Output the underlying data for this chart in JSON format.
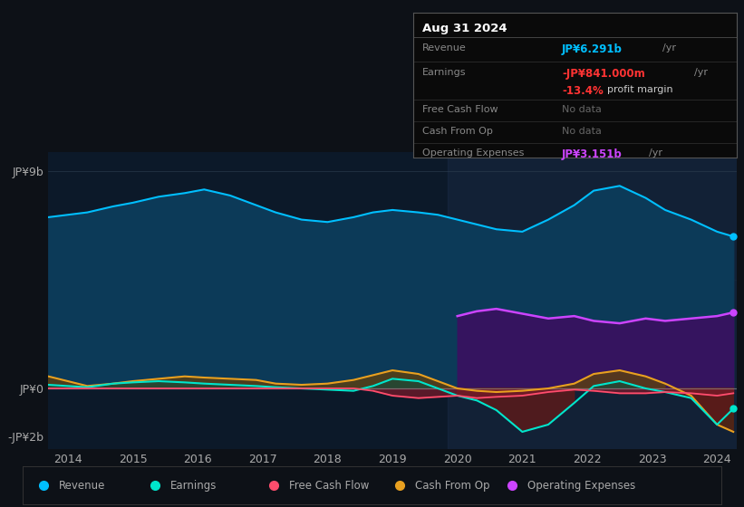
{
  "bg_color": "#0d1117",
  "plot_bg_color": "#0c1929",
  "years": [
    2013.7,
    2014.0,
    2014.3,
    2014.7,
    2015.0,
    2015.4,
    2015.8,
    2016.1,
    2016.5,
    2016.9,
    2017.2,
    2017.6,
    2018.0,
    2018.4,
    2018.7,
    2019.0,
    2019.4,
    2019.7,
    2020.0,
    2020.3,
    2020.6,
    2021.0,
    2021.4,
    2021.8,
    2022.1,
    2022.5,
    2022.9,
    2023.2,
    2023.6,
    2024.0,
    2024.25
  ],
  "revenue": [
    7.1,
    7.2,
    7.3,
    7.55,
    7.7,
    7.95,
    8.1,
    8.25,
    8.0,
    7.6,
    7.3,
    7.0,
    6.9,
    7.1,
    7.3,
    7.4,
    7.3,
    7.2,
    7.0,
    6.8,
    6.6,
    6.5,
    7.0,
    7.6,
    8.2,
    8.4,
    7.9,
    7.4,
    7.0,
    6.5,
    6.3
  ],
  "earnings": [
    0.15,
    0.1,
    0.05,
    0.2,
    0.25,
    0.3,
    0.25,
    0.2,
    0.15,
    0.1,
    0.05,
    0.0,
    -0.05,
    -0.1,
    0.1,
    0.4,
    0.3,
    0.0,
    -0.3,
    -0.5,
    -0.9,
    -1.8,
    -1.5,
    -0.6,
    0.1,
    0.3,
    0.0,
    -0.15,
    -0.4,
    -1.5,
    -0.84
  ],
  "free_cash_flow": [
    0.0,
    0.0,
    0.0,
    0.0,
    0.0,
    0.0,
    0.0,
    0.0,
    0.0,
    0.0,
    0.0,
    0.0,
    0.0,
    0.0,
    -0.1,
    -0.3,
    -0.4,
    -0.35,
    -0.3,
    -0.4,
    -0.35,
    -0.3,
    -0.15,
    -0.05,
    -0.1,
    -0.2,
    -0.2,
    -0.15,
    -0.2,
    -0.3,
    -0.2
  ],
  "cash_from_op": [
    0.5,
    0.3,
    0.1,
    0.2,
    0.3,
    0.4,
    0.5,
    0.45,
    0.4,
    0.35,
    0.2,
    0.15,
    0.2,
    0.35,
    0.55,
    0.75,
    0.6,
    0.3,
    0.0,
    -0.1,
    -0.15,
    -0.1,
    0.0,
    0.2,
    0.6,
    0.75,
    0.5,
    0.2,
    -0.3,
    -1.5,
    -1.8
  ],
  "op_expenses": [
    0.0,
    0.0,
    0.0,
    0.0,
    0.0,
    0.0,
    0.0,
    0.0,
    0.0,
    0.0,
    0.0,
    0.0,
    0.0,
    0.0,
    0.0,
    0.0,
    0.0,
    0.0,
    3.0,
    3.2,
    3.3,
    3.1,
    2.9,
    3.0,
    2.8,
    2.7,
    2.9,
    2.8,
    2.9,
    3.0,
    3.15
  ],
  "ylim": [
    -2.5,
    9.8
  ],
  "yticks": [
    9,
    0,
    -2
  ],
  "ytick_labels": [
    "JP¥9b",
    "JP¥0",
    "-JP¥2b"
  ],
  "xticks": [
    2014,
    2015,
    2016,
    2017,
    2018,
    2019,
    2020,
    2021,
    2022,
    2023,
    2024
  ],
  "revenue_color": "#00bfff",
  "earnings_color": "#00e5cc",
  "fcf_color": "#ff4d6d",
  "cashop_color": "#e8a020",
  "opex_color": "#cc44ff",
  "revenue_fill": "#0c3a58",
  "earnings_fill_neg": "#5a1a1a",
  "fcf_fill_neg": "#7a1a2a",
  "cashop_fill_pos": "#5c4010",
  "cashop_fill_neg": "#5c2510",
  "opex_fill": "#3a1060",
  "text_color": "#aaaaaa",
  "highlight_region_start": 2019.85,
  "highlight_region_color": "#1a2540"
}
